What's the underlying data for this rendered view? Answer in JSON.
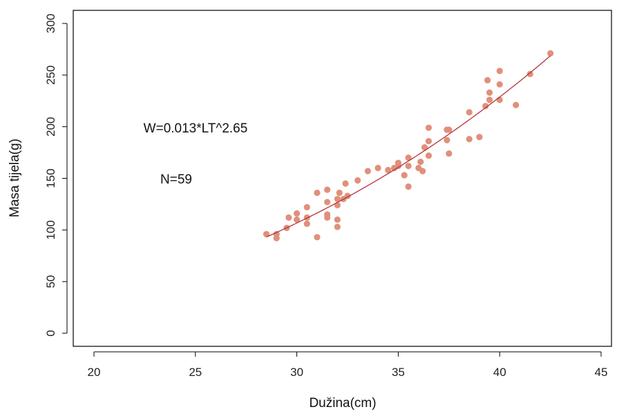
{
  "chart_data": {
    "type": "scatter",
    "xlabel": "Dužina(cm)",
    "ylabel": "Masa tijela(g)",
    "xlim": [
      20,
      45
    ],
    "ylim": [
      0,
      300
    ],
    "x_ticks": [
      "20",
      "25",
      "30",
      "35",
      "40",
      "45"
    ],
    "y_ticks": [
      "0",
      "50",
      "100",
      "150",
      "200",
      "250",
      "300"
    ],
    "grid": false,
    "point_color": "#e0907a",
    "curve_color": "#b5303c",
    "annotations": [
      "W=0.013*LT^2.65",
      "N=59"
    ],
    "fit": {
      "a": 0.013,
      "b": 2.65,
      "x_range": [
        28.5,
        42.5
      ]
    },
    "points": [
      [
        28.5,
        96
      ],
      [
        29.0,
        92
      ],
      [
        29.0,
        96
      ],
      [
        29.5,
        102
      ],
      [
        29.6,
        112
      ],
      [
        30.0,
        110
      ],
      [
        30.0,
        116
      ],
      [
        30.5,
        106
      ],
      [
        30.5,
        112
      ],
      [
        30.5,
        122
      ],
      [
        31.0,
        93
      ],
      [
        31.0,
        136
      ],
      [
        31.5,
        112
      ],
      [
        31.5,
        115
      ],
      [
        31.5,
        127
      ],
      [
        31.5,
        139
      ],
      [
        32.0,
        103
      ],
      [
        32.0,
        110
      ],
      [
        32.0,
        124
      ],
      [
        32.0,
        130
      ],
      [
        32.1,
        136
      ],
      [
        32.3,
        130
      ],
      [
        32.4,
        145
      ],
      [
        32.5,
        133
      ],
      [
        33.5,
        157
      ],
      [
        34.0,
        160
      ],
      [
        34.5,
        158
      ],
      [
        35.0,
        162
      ],
      [
        35.0,
        165
      ],
      [
        35.3,
        153
      ],
      [
        35.5,
        142
      ],
      [
        35.5,
        162
      ],
      [
        35.5,
        170
      ],
      [
        36.0,
        160
      ],
      [
        36.1,
        166
      ],
      [
        36.2,
        157
      ],
      [
        36.3,
        180
      ],
      [
        36.5,
        172
      ],
      [
        36.5,
        186
      ],
      [
        36.5,
        199
      ],
      [
        37.4,
        187
      ],
      [
        37.4,
        197
      ],
      [
        37.5,
        174
      ],
      [
        37.5,
        197
      ],
      [
        38.5,
        188
      ],
      [
        38.5,
        214
      ],
      [
        39.0,
        190
      ],
      [
        39.3,
        220
      ],
      [
        39.4,
        245
      ],
      [
        39.5,
        226
      ],
      [
        39.5,
        233
      ],
      [
        40.0,
        226
      ],
      [
        40.0,
        241
      ],
      [
        40.0,
        254
      ],
      [
        40.8,
        221
      ],
      [
        41.5,
        251
      ],
      [
        42.5,
        271
      ],
      [
        33.0,
        148
      ],
      [
        34.8,
        160
      ]
    ]
  }
}
